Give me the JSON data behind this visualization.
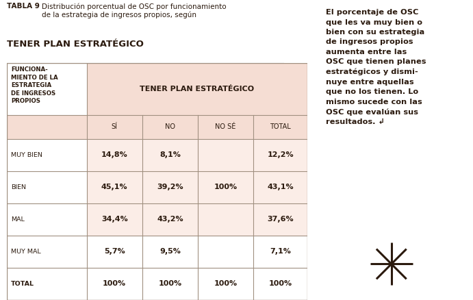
{
  "title_bold": "TABLA 9",
  "title_normal": " Distribución porcentual de OSC por funcionamiento\nde la estrategia de ingresos propios, según",
  "title_large": "TENER PLAN ESTRATÉGICO",
  "bg_color": "#ffffff",
  "right_bg_color": "#f5c9a8",
  "table_header_bg": "#f5ddd3",
  "table_row_alt_bg": "#fbede7",
  "table_border_color": "#a09080",
  "col_header": [
    "SÍ",
    "NO",
    "NO SÉ",
    "TOTAL"
  ],
  "row_headers": [
    "FUNCIONA-\nMIENTO DE LA\nESTRATEGIA\nDE INGRESOS\nPROPIOS",
    "MUY BIEN",
    "BIEN",
    "MAL",
    "MUY MAL",
    "TOTAL"
  ],
  "data": [
    [
      "14,8%",
      "8,1%",
      "",
      "12,2%"
    ],
    [
      "45,1%",
      "39,2%",
      "100%",
      "43,1%"
    ],
    [
      "34,4%",
      "43,2%",
      "",
      "37,6%"
    ],
    [
      "5,7%",
      "9,5%",
      "",
      "7,1%"
    ],
    [
      "100%",
      "100%",
      "100%",
      "100%"
    ]
  ],
  "right_text_parts": [
    [
      "El porcentaje de OSC ",
      false
    ],
    [
      "que les va muy bien o ",
      false
    ],
    [
      "bien con su estrategia ",
      false
    ],
    [
      "de ingresos propios ",
      false
    ],
    [
      "aumenta entre las ",
      false
    ],
    [
      "OSC que tienen planes ",
      false
    ],
    [
      "estratégicos y dismi-",
      false
    ],
    [
      "nuye entre aquellas ",
      false
    ],
    [
      "que no los tienen. Lo ",
      false
    ],
    [
      "mismo sucede con las ",
      false
    ],
    [
      "OSC que evalúan sus ",
      false
    ],
    [
      "resultados. ↲",
      false
    ]
  ],
  "text_color": "#2b1a0e",
  "header_span_label": "TENER PLAN ESTRATÉGICO",
  "divider_color": "#333333"
}
